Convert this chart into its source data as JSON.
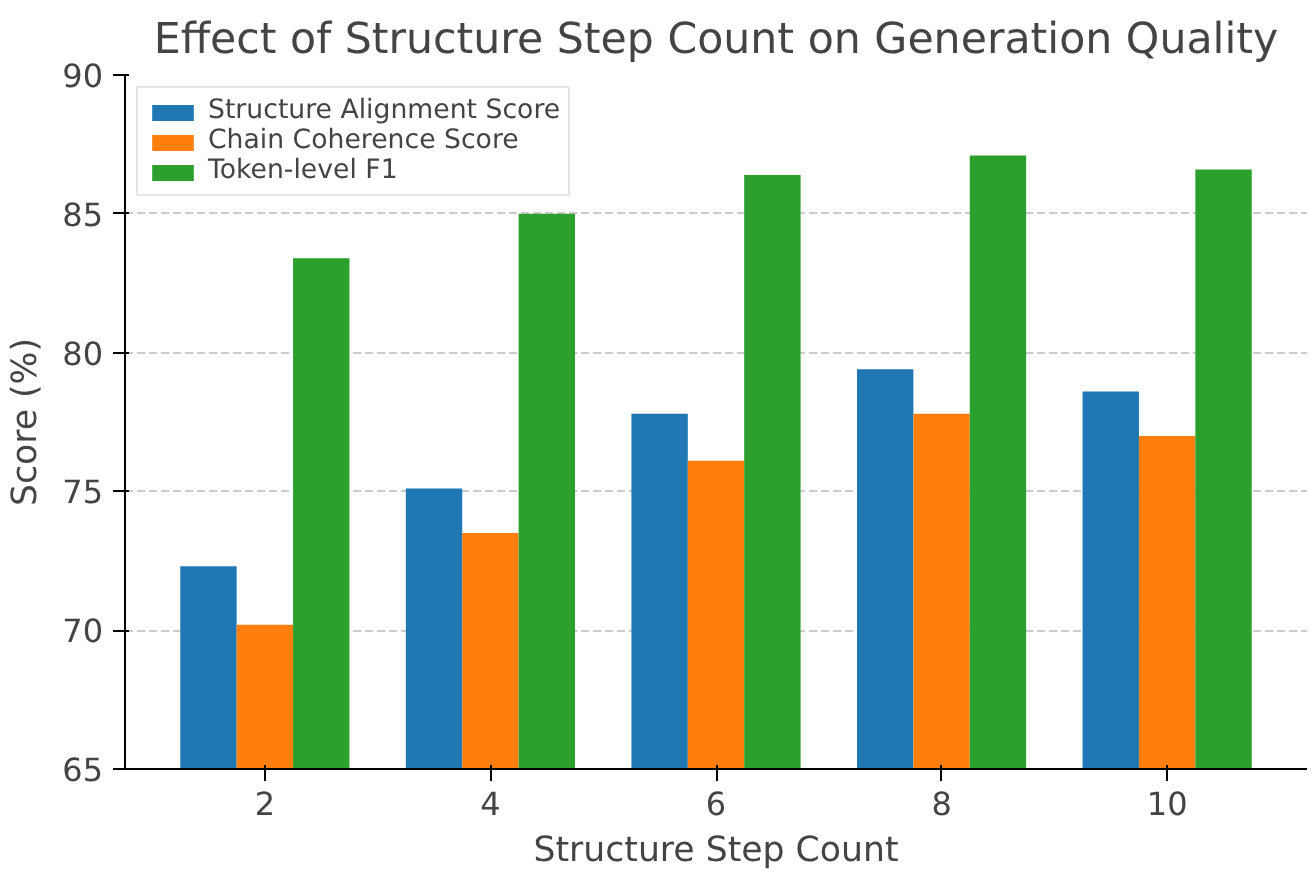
{
  "chart_data": {
    "type": "bar",
    "title": "Effect of Structure Step Count on Generation Quality",
    "xlabel": "Structure Step Count",
    "ylabel": "Score (%)",
    "categories": [
      "2",
      "4",
      "6",
      "8",
      "10"
    ],
    "series": [
      {
        "name": "Structure Alignment Score",
        "color": "#1f77b4",
        "values": [
          72.3,
          75.1,
          77.8,
          79.4,
          78.6
        ]
      },
      {
        "name": "Chain Coherence Score",
        "color": "#ff7f0e",
        "values": [
          70.2,
          73.5,
          76.1,
          77.8,
          77.0
        ]
      },
      {
        "name": "Token-level F1",
        "color": "#2ca02c",
        "values": [
          83.4,
          85.0,
          86.4,
          87.1,
          86.6
        ]
      }
    ],
    "ylim": [
      65,
      90
    ],
    "yticks": [
      65,
      70,
      75,
      80,
      85,
      90
    ],
    "grid": "y",
    "legend": "top left"
  }
}
